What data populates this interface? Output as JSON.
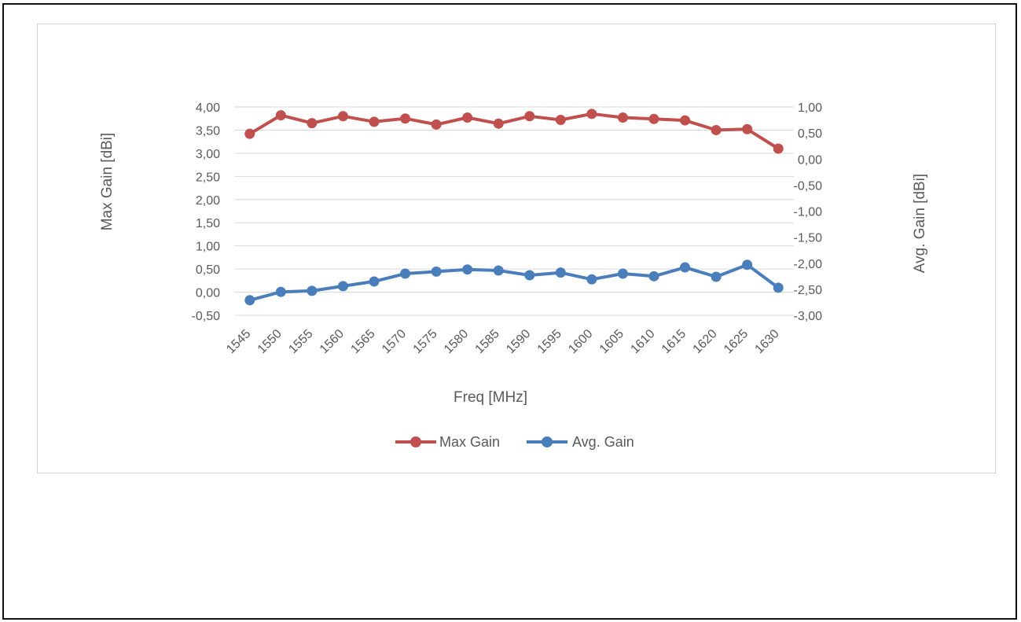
{
  "chart_data": {
    "type": "line",
    "title": "",
    "xlabel": "Freq [MHz]",
    "ylabel_left": "Max Gain [dBi]",
    "ylabel_right": "Avg. Gain [dBi]",
    "x": [
      "1545",
      "1550",
      "1555",
      "1560",
      "1565",
      "1570",
      "1575",
      "1580",
      "1585",
      "1590",
      "1595",
      "1600",
      "1605",
      "1610",
      "1615",
      "1620",
      "1625",
      "1630"
    ],
    "left_axis": {
      "range": [
        -0.5,
        4.0
      ],
      "ticks": [
        "4,00",
        "3,50",
        "3,00",
        "2,50",
        "2,00",
        "1,50",
        "1,00",
        "0,50",
        "0,00",
        "-0,50"
      ]
    },
    "right_axis": {
      "range": [
        -3.0,
        1.0
      ],
      "ticks": [
        "1,00",
        "0,50",
        "0,00",
        "-0,50",
        "-1,00",
        "-1,50",
        "-2,00",
        "-2,50",
        "-3,00"
      ]
    },
    "series": [
      {
        "name": "Max Gain",
        "axis": "left",
        "color": "#c0504d",
        "values": [
          3.42,
          3.82,
          3.65,
          3.8,
          3.68,
          3.75,
          3.62,
          3.77,
          3.64,
          3.8,
          3.72,
          3.85,
          3.77,
          3.74,
          3.71,
          3.5,
          3.52,
          3.1
        ]
      },
      {
        "name": "Avg. Gain",
        "axis": "right",
        "color": "#4a7ebb",
        "values": [
          -2.71,
          -2.55,
          -2.53,
          -2.44,
          -2.35,
          -2.2,
          -2.16,
          -2.12,
          -2.14,
          -2.23,
          -2.18,
          -2.31,
          -2.2,
          -2.25,
          -2.08,
          -2.26,
          -2.03,
          -2.47
        ]
      }
    ],
    "grid": true,
    "legend_position": "bottom"
  }
}
